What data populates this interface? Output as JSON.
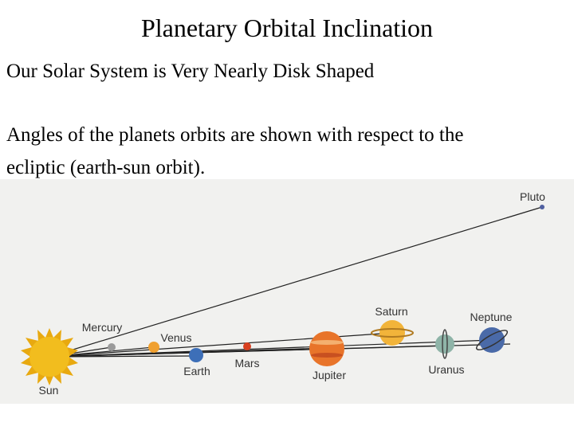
{
  "header": {
    "title": "Planetary Orbital Inclination"
  },
  "body": {
    "lines": [
      "Our Solar System is Very Nearly Disk Shaped",
      "Angles of the planets orbits are shown with respect to the",
      "ecliptic (earth-sun orbit)."
    ]
  },
  "diagram": {
    "labels": {
      "pluto": "Pluto",
      "mercury": "Mercury",
      "venus": "Venus",
      "earth": "Earth",
      "mars": "Mars",
      "jupiter": "Jupiter",
      "saturn": "Saturn",
      "uranus": "Uranus",
      "neptune": "Neptune",
      "sun": "Sun"
    }
  }
}
